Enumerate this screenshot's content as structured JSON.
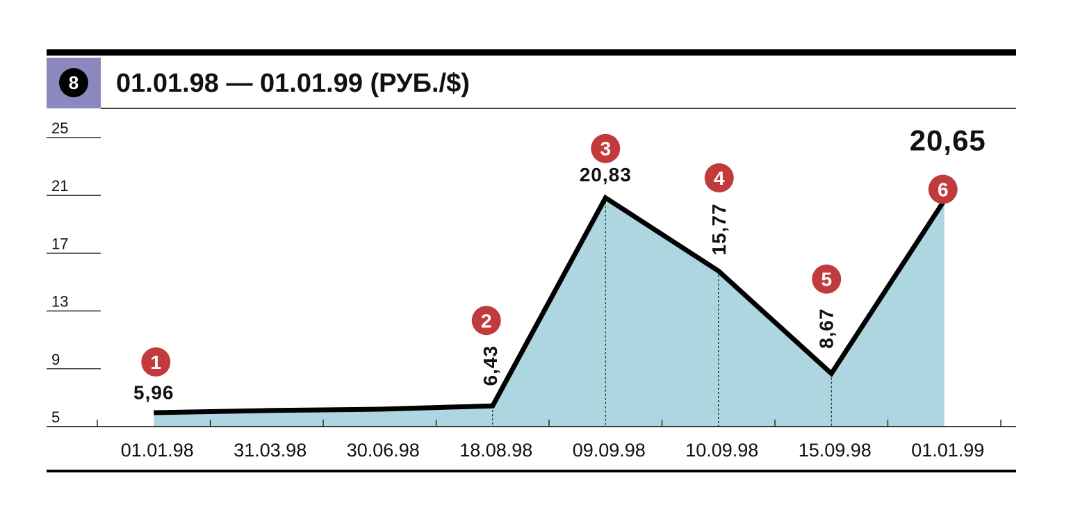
{
  "chart_data": {
    "type": "area",
    "badge": "8",
    "title": "01.01.98 — 01.01.99 (РУБ./$)",
    "categories": [
      "01.01.98",
      "31.03.98",
      "30.06.98",
      "18.08.98",
      "09.09.98",
      "10.09.98",
      "15.09.98",
      "01.01.99"
    ],
    "values": [
      5.96,
      6.11,
      6.2,
      6.43,
      20.83,
      15.77,
      8.67,
      20.65
    ],
    "value_labels": [
      "5,96",
      null,
      null,
      "6,43",
      "20,83",
      "15,77",
      "8,67",
      "20,65"
    ],
    "markers": [
      "1",
      null,
      null,
      "2",
      "3",
      "4",
      "5",
      "6"
    ],
    "color": "#aed6e0",
    "line_color": "#000000",
    "marker_color": "#c23b3c",
    "ylim": [
      5,
      25
    ],
    "yticks": [
      5,
      9,
      13,
      17,
      21,
      25
    ]
  }
}
